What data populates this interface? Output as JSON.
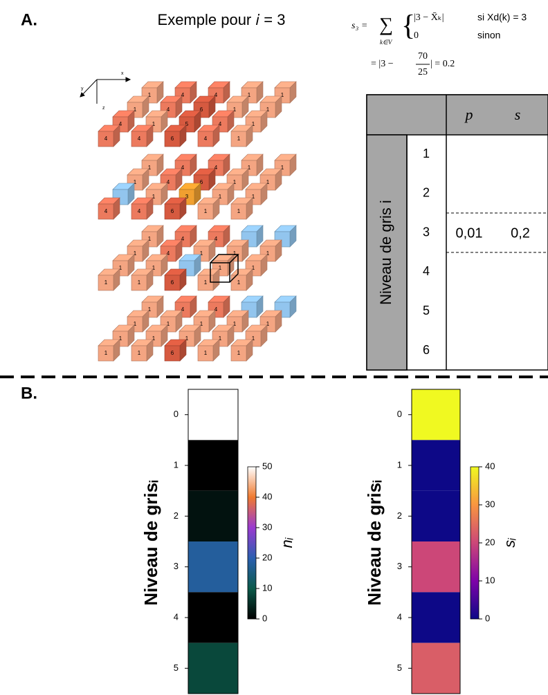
{
  "panel_a": {
    "label": "A.",
    "title": "Exemple pour 𝑖 = 3",
    "axes": {
      "x": "x",
      "y": "y",
      "z": "z"
    },
    "formula": {
      "lhs": "s₃ =",
      "sum": "∑",
      "sub": "k∈V",
      "case1": "|3 − X̄ₖ|",
      "cond1": "si Xd(k) = 3",
      "case2": "0",
      "cond2": "sinon",
      "line2a": "= |3 −",
      "num": "70",
      "den": "25",
      "line2b": "| = 0.2"
    },
    "lattice": {
      "palette": {
        "1": "#f4a582",
        "3": "#f0a030",
        "4": "#ec7a5e",
        "5": "#d65a40",
        "6": "#d65a40",
        "blue": "#92c5ee"
      },
      "layers": [
        [
          [
            1,
            4,
            4,
            1,
            1
          ],
          [
            1,
            4,
            6,
            1,
            1
          ],
          [
            4,
            1,
            5,
            4,
            1
          ],
          [
            4,
            4,
            6,
            4,
            1
          ]
        ],
        [
          [
            1,
            4,
            4,
            1,
            1
          ],
          [
            1,
            4,
            6,
            1,
            1
          ],
          [
            null,
            1,
            3,
            1,
            1
          ],
          [
            4,
            4,
            6,
            1,
            1
          ]
        ],
        [
          [
            1,
            4,
            4,
            null,
            null
          ],
          [
            1,
            4,
            1,
            1,
            1
          ],
          [
            1,
            1,
            null,
            1,
            1
          ],
          [
            1,
            1,
            6,
            1,
            1
          ]
        ],
        [
          [
            1,
            4,
            4,
            null,
            null
          ],
          [
            1,
            1,
            1,
            1,
            1
          ],
          [
            1,
            1,
            1,
            1,
            1
          ],
          [
            1,
            1,
            6,
            1,
            1
          ]
        ]
      ]
    }
  },
  "table": {
    "col_headers": [
      "p",
      "s"
    ],
    "row_header": "Niveau de gris i",
    "rows": [
      {
        "level": 1
      },
      {
        "level": 2
      },
      {
        "level": 3,
        "p": "0,01",
        "s": "0,2"
      },
      {
        "level": 4
      },
      {
        "level": 5
      },
      {
        "level": 6
      }
    ]
  },
  "panel_b": {
    "label": "B."
  },
  "chart_data": [
    {
      "type": "heatmap",
      "ylabel": "Niveau de grisᵢ",
      "colorbar_label": "nᵢ",
      "categories": [
        0,
        1,
        2,
        3,
        4,
        5
      ],
      "values": [
        50,
        0,
        2,
        18,
        0,
        8
      ],
      "ylim": [
        5.5,
        -0.5
      ],
      "yticks": [
        0,
        1,
        2,
        3,
        4,
        5
      ],
      "colormap": "cubehelix",
      "clim": [
        0,
        50
      ],
      "cticks": [
        0,
        10,
        20,
        30,
        40,
        50
      ]
    },
    {
      "type": "heatmap",
      "ylabel": "Niveau de grisᵢ",
      "colorbar_label": "sᵢ",
      "categories": [
        0,
        1,
        2,
        3,
        4,
        5
      ],
      "values": [
        40,
        0,
        0,
        20,
        0,
        23
      ],
      "ylim": [
        5.5,
        -0.5
      ],
      "yticks": [
        0,
        1,
        2,
        3,
        4,
        5
      ],
      "colormap": "plasma",
      "clim": [
        0,
        40
      ],
      "cticks": [
        0,
        10,
        20,
        30,
        40
      ]
    }
  ]
}
